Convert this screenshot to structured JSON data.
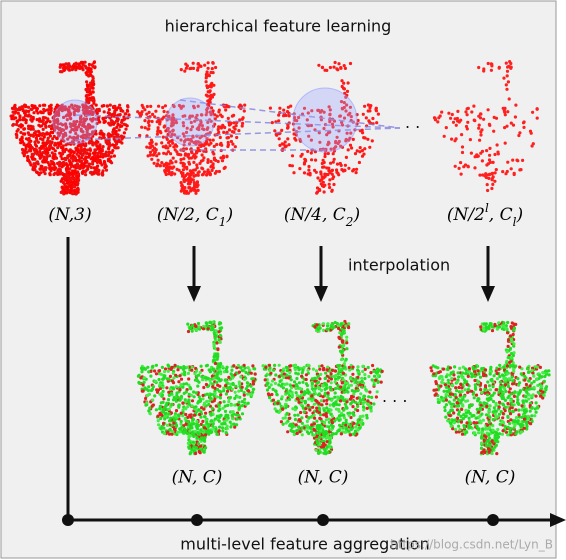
{
  "title": "hierarchical feature learning",
  "top_labels": [
    [
      {
        "t": "(N,3)"
      }
    ],
    [
      {
        "t": "(N/2, C"
      },
      {
        "t": "1",
        "sub": true
      },
      {
        "t": ")"
      }
    ],
    [
      {
        "t": "(N/4, C"
      },
      {
        "t": "2",
        "sub": true
      },
      {
        "t": ")"
      }
    ],
    [
      {
        "t": "(N/2"
      },
      {
        "t": "l",
        "sup": true
      },
      {
        "t": ", C"
      },
      {
        "t": "l",
        "sub": true
      },
      {
        "t": ")"
      }
    ]
  ],
  "ellipsis_top": "· ·",
  "interpolation": "interpolation",
  "bottom_labels": [
    "(N, C)",
    "(N, C)",
    "(N, C)"
  ],
  "ellipsis_bottom": "· · ·",
  "aggregation": "multi-level feature aggregation",
  "watermark": "https://blog.csdn.net/Lyn_B"
}
